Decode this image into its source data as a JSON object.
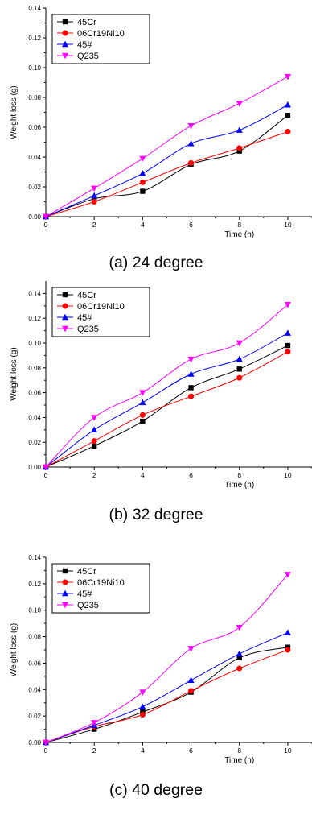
{
  "colors": {
    "45Cr": "#000000",
    "06Cr19Ni10": "#ff0000",
    "45#": "#0000ff",
    "Q235": "#ff00ff"
  },
  "chart_data": [
    {
      "type": "line",
      "caption": "(a) 24 degree",
      "xlabel": "Time (h)",
      "ylabel": "Weight loss (g)",
      "xlim": [
        0,
        11
      ],
      "ylim": [
        0,
        0.14
      ],
      "xticks": [
        0,
        2,
        4,
        6,
        8,
        10
      ],
      "yticks": [
        0.0,
        0.02,
        0.04,
        0.06,
        0.08,
        0.1,
        0.12,
        0.14
      ],
      "legend_position": "top-left",
      "x": [
        0,
        2,
        4,
        6,
        8,
        10
      ],
      "series": [
        {
          "name": "45Cr",
          "marker": "square",
          "color": "#000000",
          "values": [
            0.0,
            0.012,
            0.017,
            0.035,
            0.044,
            0.068
          ]
        },
        {
          "name": "06Cr19Ni10",
          "marker": "circle",
          "color": "#ff0000",
          "values": [
            0.0,
            0.01,
            0.023,
            0.036,
            0.046,
            0.057
          ]
        },
        {
          "name": "45#",
          "marker": "triangle-up",
          "color": "#0000ff",
          "values": [
            0.0,
            0.014,
            0.029,
            0.049,
            0.058,
            0.075
          ]
        },
        {
          "name": "Q235",
          "marker": "triangle-down",
          "color": "#ff00ff",
          "values": [
            0.0,
            0.019,
            0.039,
            0.061,
            0.076,
            0.094
          ]
        }
      ]
    },
    {
      "type": "line",
      "caption": "(b) 32 degree",
      "xlabel": "Time (h)",
      "ylabel": "Weight loss (g)",
      "xlim": [
        0,
        11
      ],
      "ylim": [
        0,
        0.15
      ],
      "xticks": [
        0,
        2,
        4,
        6,
        8,
        10
      ],
      "yticks": [
        0.0,
        0.02,
        0.04,
        0.06,
        0.08,
        0.1,
        0.12,
        0.14
      ],
      "legend_position": "top-left",
      "x": [
        0,
        2,
        4,
        6,
        8,
        10
      ],
      "series": [
        {
          "name": "45Cr",
          "marker": "square",
          "color": "#000000",
          "values": [
            0.0,
            0.017,
            0.037,
            0.064,
            0.079,
            0.098
          ]
        },
        {
          "name": "06Cr19Ni10",
          "marker": "circle",
          "color": "#ff0000",
          "values": [
            0.0,
            0.021,
            0.042,
            0.057,
            0.072,
            0.093
          ]
        },
        {
          "name": "45#",
          "marker": "triangle-up",
          "color": "#0000ff",
          "values": [
            0.0,
            0.03,
            0.052,
            0.075,
            0.087,
            0.108
          ]
        },
        {
          "name": "Q235",
          "marker": "triangle-down",
          "color": "#ff00ff",
          "values": [
            0.0,
            0.04,
            0.06,
            0.087,
            0.1,
            0.131
          ]
        }
      ]
    },
    {
      "type": "line",
      "caption": "(c) 40 degree",
      "xlabel": "Time (h)",
      "ylabel": "Weight loss (g)",
      "xlim": [
        0,
        11
      ],
      "ylim": [
        0,
        0.14
      ],
      "xticks": [
        0,
        2,
        4,
        6,
        8,
        10
      ],
      "yticks": [
        0.0,
        0.02,
        0.04,
        0.06,
        0.08,
        0.1,
        0.12,
        0.14
      ],
      "legend_position": "top-left",
      "x": [
        0,
        2,
        4,
        6,
        8,
        10
      ],
      "series": [
        {
          "name": "45Cr",
          "marker": "square",
          "color": "#000000",
          "values": [
            0.0,
            0.01,
            0.023,
            0.038,
            0.064,
            0.072
          ]
        },
        {
          "name": "06Cr19Ni10",
          "marker": "circle",
          "color": "#ff0000",
          "values": [
            0.0,
            0.012,
            0.021,
            0.039,
            0.056,
            0.07
          ]
        },
        {
          "name": "45#",
          "marker": "triangle-up",
          "color": "#0000ff",
          "values": [
            0.0,
            0.013,
            0.027,
            0.047,
            0.067,
            0.083
          ]
        },
        {
          "name": "Q235",
          "marker": "triangle-down",
          "color": "#ff00ff",
          "values": [
            0.0,
            0.015,
            0.038,
            0.071,
            0.087,
            0.127
          ]
        }
      ]
    }
  ]
}
